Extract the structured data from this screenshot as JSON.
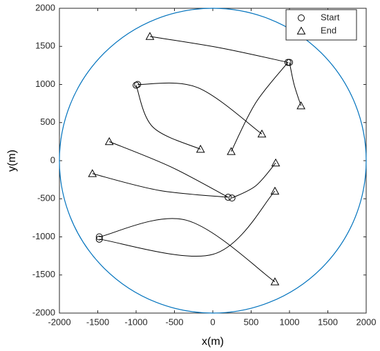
{
  "chart_data": {
    "type": "trajectory",
    "xlabel": "x(m)",
    "ylabel": "y(m)",
    "xlim": [
      -2000,
      2000
    ],
    "ylim": [
      -2000,
      2000
    ],
    "xticks": [
      -2000,
      -1500,
      -1000,
      -500,
      0,
      500,
      1000,
      1500,
      2000
    ],
    "yticks": [
      -2000,
      -1500,
      -1000,
      -500,
      0,
      500,
      1000,
      1500,
      2000
    ],
    "legend": "top-right",
    "boundary": {
      "center": [
        0,
        0
      ],
      "radius": 2000,
      "color": "#0072bd"
    },
    "series": [
      {
        "name": "Start",
        "marker": "circle",
        "color": "#000000",
        "x": [
          980,
          1000,
          -1000,
          -980,
          200,
          250,
          -1480,
          -1480
        ],
        "y": [
          1290,
          1290,
          990,
          1000,
          -480,
          -490,
          -1000,
          -1030
        ]
      },
      {
        "name": "End",
        "marker": "triangle",
        "color": "#000000",
        "x": [
          -820,
          1150,
          -160,
          240,
          640,
          -1350,
          -1570,
          820,
          810,
          810
        ],
        "y": [
          1630,
          720,
          150,
          120,
          350,
          250,
          -170,
          -30,
          -400,
          -1590
        ]
      }
    ],
    "trajectories": [
      {
        "x": [
          980,
          100,
          -820
        ],
        "y": [
          1290,
          1480,
          1630
        ]
      },
      {
        "x": [
          1000,
          1060,
          1150
        ],
        "y": [
          1290,
          1000,
          720
        ]
      },
      {
        "x": [
          980,
          560,
          240
        ],
        "y": [
          1290,
          760,
          120
        ]
      },
      {
        "x": [
          -1000,
          -780,
          -160
        ],
        "y": [
          990,
          440,
          150
        ]
      },
      {
        "x": [
          -980,
          -200,
          640
        ],
        "y": [
          1000,
          960,
          350
        ]
      },
      {
        "x": [
          200,
          -550,
          -1350
        ],
        "y": [
          -480,
          -80,
          250
        ]
      },
      {
        "x": [
          200,
          -700,
          -1570
        ],
        "y": [
          -480,
          -390,
          -170
        ]
      },
      {
        "x": [
          250,
          560,
          820
        ],
        "y": [
          -490,
          -330,
          -30
        ]
      },
      {
        "x": [
          -1480,
          -350,
          810
        ],
        "y": [
          -1000,
          -780,
          -1590
        ]
      },
      {
        "x": [
          -1480,
          0,
          810
        ],
        "y": [
          -1030,
          -1230,
          -400
        ]
      }
    ]
  }
}
